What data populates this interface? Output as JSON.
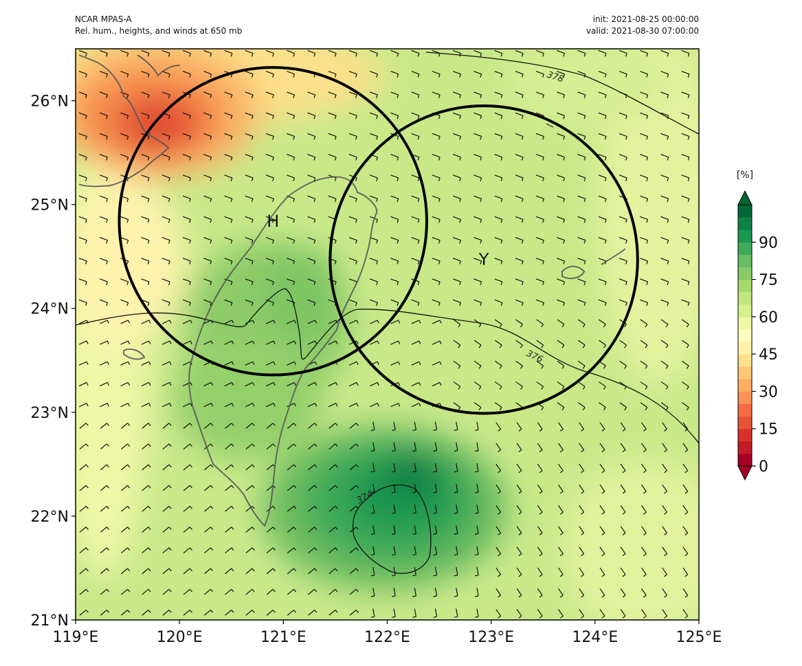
{
  "header": {
    "model": "NCAR MPAS-A",
    "field": "Rel. hum., heights, and winds at 650 mb",
    "init": "init: 2021-08-25 00:00:00",
    "valid": "valid: 2021-08-30 07:00:00"
  },
  "map": {
    "lon_range": [
      119,
      125
    ],
    "lat_range": [
      21,
      26.5
    ],
    "lon_ticks": [
      "119°E",
      "120°E",
      "121°E",
      "122°E",
      "123°E",
      "124°E",
      "125°E"
    ],
    "lat_ticks": [
      "21°N",
      "22°N",
      "23°N",
      "24°N",
      "25°N",
      "26°N"
    ],
    "circles": [
      {
        "label": "H",
        "center_lon": 120.9,
        "center_lat": 24.84,
        "radius_deg_lon": 1.48
      },
      {
        "label": "Y",
        "center_lon": 122.93,
        "center_lat": 24.47,
        "radius_deg_lon": 1.48
      }
    ],
    "height_contours": [
      {
        "value": "378"
      },
      {
        "value": "376"
      },
      {
        "value": "374"
      }
    ],
    "wind_barb_spacing_deg": 0.2
  },
  "colorbar": {
    "unit": "[%]",
    "ticks": [
      "0",
      "15",
      "30",
      "45",
      "60",
      "75",
      "90"
    ],
    "levels_step": 5,
    "colors": [
      "#a50026",
      "#c21c27",
      "#d83127",
      "#e75337",
      "#f46d43",
      "#f89353",
      "#fdae61",
      "#fec575",
      "#fee08b",
      "#fff1a8",
      "#ffffbf",
      "#eff8a6",
      "#d9ef8b",
      "#c2e67f",
      "#a6d96a",
      "#87cb67",
      "#66bd63",
      "#3faa59",
      "#1a9850",
      "#0e8245",
      "#006837"
    ]
  }
}
